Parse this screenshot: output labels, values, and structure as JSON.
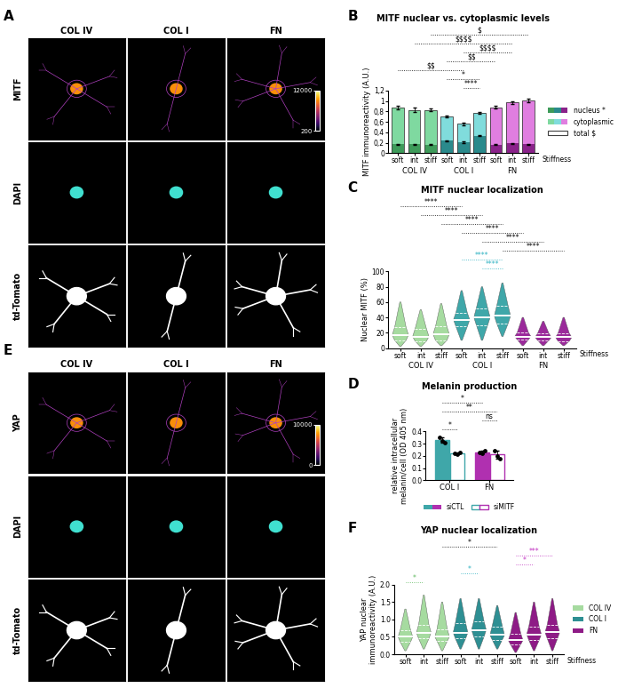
{
  "image_panels": [
    {
      "panel": "A",
      "columns": [
        "COL IV",
        "COL I",
        "FN"
      ],
      "rows": [
        "MITF",
        "DAPI",
        "td-Tomato"
      ],
      "colorbar": {
        "range": [
          200,
          12000
        ],
        "ticks": [
          200,
          12000
        ]
      }
    },
    {
      "panel": "E",
      "columns": [
        "COL IV",
        "COL I",
        "FN"
      ],
      "rows": [
        "YAP",
        "DAPI",
        "td-Tomato"
      ],
      "colorbar": {
        "range": [
          0,
          10000
        ],
        "ticks": [
          0,
          10000
        ]
      }
    }
  ],
  "chart_data": [
    {
      "panel": "B",
      "type": "bar",
      "title": "MITF nuclear vs. cytoplasmic levels",
      "categories": [
        "soft",
        "int",
        "stiff",
        "soft",
        "int",
        "stiff",
        "soft",
        "int",
        "stiff"
      ],
      "groups": [
        "COL IV",
        "COL I",
        "FN"
      ],
      "x_label": "Stiffness",
      "y_label": "MITF immunoreactivity (A.U.)",
      "ylim": [
        0,
        1.2
      ],
      "yticks": [
        0,
        {
          "value": 0.2,
          "label": "0,2"
        },
        {
          "value": 0.4,
          "label": "0,4"
        },
        {
          "value": 0.6,
          "label": "0,6"
        },
        {
          "value": 0.8,
          "label": "0,8"
        },
        1,
        {
          "value": 1.2,
          "label": "1,2"
        }
      ],
      "stacked": true,
      "legend": "right",
      "series": [
        {
          "name": "nucleus *",
          "type": "bar",
          "colors": [
            "#3e9b5a",
            "#3e9b5a",
            "#3e9b5a",
            "#2a8a8c",
            "#2a8a8c",
            "#2a8a8c",
            "#8a228a",
            "#8a228a",
            "#8a228a"
          ],
          "values": [
            0.17,
            0.17,
            0.16,
            0.24,
            0.21,
            0.33,
            0.16,
            0.19,
            0.17
          ],
          "errors": [
            0.01,
            0.01,
            0.01,
            0.01,
            0.01,
            0.01,
            0.01,
            0.01,
            0.01
          ]
        },
        {
          "name": "cytoplasmic",
          "type": "bar",
          "colors": [
            "#7fd9a0",
            "#7fd9a0",
            "#7fd9a0",
            "#80dcdc",
            "#80dcdc",
            "#80dcdc",
            "#e07ee0",
            "#e07ee0",
            "#e07ee0"
          ],
          "values": [
            0.7,
            0.66,
            0.67,
            0.46,
            0.35,
            0.44,
            0.72,
            0.78,
            0.84
          ]
        },
        {
          "name": "total $",
          "type": "outline",
          "color": "#404040",
          "values": [
            0.87,
            0.83,
            0.83,
            0.7,
            0.56,
            0.77,
            0.88,
            0.97,
            1.01
          ],
          "errors": [
            0.03,
            0.04,
            0.03,
            0.02,
            0.02,
            0.02,
            0.03,
            0.03,
            0.03
          ]
        }
      ],
      "annotations": [
        {
          "text": "****",
          "pair": [
            4,
            5
          ],
          "color": "#000000"
        },
        {
          "text": "*",
          "pair": [
            3,
            5
          ],
          "color": "#000000"
        },
        {
          "text": "$$",
          "pair": [
            0,
            4
          ],
          "color": "#000000"
        },
        {
          "text": "$$",
          "pair": [
            3,
            6
          ],
          "color": "#000000"
        },
        {
          "text": "$$$$",
          "pair": [
            4,
            7
          ],
          "color": "#000000"
        },
        {
          "text": "$$$$",
          "pair": [
            1,
            7
          ],
          "color": "#000000"
        },
        {
          "text": "$",
          "pair": [
            2,
            8
          ],
          "color": "#000000"
        }
      ]
    },
    {
      "panel": "C",
      "type": "violin",
      "title": "MITF nuclear localization",
      "categories": [
        "soft",
        "int",
        "stiff",
        "soft",
        "int",
        "stiff",
        "soft",
        "int",
        "stiff"
      ],
      "groups": [
        "COL IV",
        "COL I",
        "FN"
      ],
      "x_label": "Stiffness",
      "y_label": "Nuclear MITF (%)",
      "ylim": [
        0,
        100
      ],
      "yticks": [
        0,
        20,
        40,
        60,
        80,
        100
      ],
      "colors": [
        "#a6dba0",
        "#a6dba0",
        "#a6dba0",
        "#3fa7a9",
        "#3fa7a9",
        "#3fa7a9",
        "#9b2a9b",
        "#9b2a9b",
        "#9b2a9b"
      ],
      "medians": [
        17,
        15,
        18,
        37,
        40,
        42,
        15,
        14,
        14
      ],
      "quartiles": [
        [
          10,
          27
        ],
        [
          9,
          25
        ],
        [
          10,
          28
        ],
        [
          28,
          46
        ],
        [
          30,
          52
        ],
        [
          32,
          55
        ],
        [
          11,
          20
        ],
        [
          10,
          19
        ],
        [
          9,
          19
        ]
      ],
      "ranges": [
        [
          2,
          60
        ],
        [
          2,
          50
        ],
        [
          3,
          58
        ],
        [
          10,
          75
        ],
        [
          10,
          80
        ],
        [
          15,
          85
        ],
        [
          3,
          40
        ],
        [
          3,
          35
        ],
        [
          3,
          40
        ]
      ],
      "annotations": [
        {
          "text": "****",
          "pair": [
            4,
            5
          ],
          "color": "#2ab0c0"
        },
        {
          "text": "****",
          "pair": [
            3,
            5
          ],
          "color": "#2ab0c0"
        },
        {
          "text": "****",
          "pair": [
            5,
            8
          ],
          "color": "#000000"
        },
        {
          "text": "****",
          "pair": [
            4,
            7
          ],
          "color": "#000000"
        },
        {
          "text": "****",
          "pair": [
            3,
            6
          ],
          "color": "#000000"
        },
        {
          "text": "****",
          "pair": [
            2,
            5
          ],
          "color": "#000000"
        },
        {
          "text": "****",
          "pair": [
            1,
            4
          ],
          "color": "#000000"
        },
        {
          "text": "****",
          "pair": [
            0,
            3
          ],
          "color": "#000000"
        }
      ]
    },
    {
      "panel": "D",
      "type": "bar",
      "title": "Melanin production",
      "categories": [
        "COL I",
        "FN"
      ],
      "y_label": "relative intracellular\nmelanin/cell (OD 405 nm)",
      "ylim": [
        0,
        0.4
      ],
      "yticks": [
        {
          "value": 0,
          "label": "0.0"
        },
        0.1,
        0.2,
        0.3,
        0.4
      ],
      "legend": "bottom",
      "series": [
        {
          "name": "siCTL",
          "type": "bar",
          "colors": [
            "#3fa7a9",
            "#b030b0"
          ],
          "values": [
            0.33,
            0.23
          ],
          "errors": [
            0.02,
            0.01
          ],
          "points": [
            [
              0.35,
              0.32,
              0.31
            ],
            [
              0.23,
              0.22,
              0.24
            ]
          ]
        },
        {
          "name": "siMITF",
          "type": "open_bar",
          "colors": [
            "#3fa7a9",
            "#b030b0"
          ],
          "values": [
            0.22,
            0.21
          ],
          "errors": [
            0.01,
            0.03
          ],
          "points": [
            [
              0.22,
              0.21,
              0.23
            ],
            [
              0.24,
              0.2,
              0.18
            ]
          ]
        }
      ],
      "annotations": [
        {
          "text": "*",
          "pair": [
            0,
            1
          ],
          "color": "#000000"
        },
        {
          "text": "ns",
          "pair": [
            2,
            3
          ],
          "color": "#000000"
        },
        {
          "text": "**",
          "pair": [
            0,
            3
          ],
          "color": "#000000"
        },
        {
          "text": "*",
          "pair": [
            0,
            2
          ],
          "color": "#000000"
        }
      ]
    },
    {
      "panel": "F",
      "type": "violin",
      "title": "YAP nuclear localization",
      "categories": [
        "soft",
        "int",
        "stiff",
        "soft",
        "int",
        "stiff",
        "soft",
        "int",
        "stiff"
      ],
      "groups": [
        "COL IV",
        "COL I",
        "FN"
      ],
      "x_label": "Stiffness",
      "y_label": "YAP nuclear\nimmunoreactivity (A.U.)",
      "ylim": [
        0,
        2.0
      ],
      "yticks": [
        {
          "value": 0,
          "label": "0.0"
        },
        0.5,
        {
          "value": 1,
          "label": "1.0"
        },
        1.5,
        {
          "value": 2,
          "label": "2.0"
        }
      ],
      "legend": "right",
      "colors": [
        "#a6dba0",
        "#a6dba0",
        "#a6dba0",
        "#2e8f93",
        "#2e8f93",
        "#2e8f93",
        "#8e1b86",
        "#8e1b86",
        "#8e1b86"
      ],
      "medians": [
        0.5,
        0.62,
        0.5,
        0.62,
        0.7,
        0.55,
        0.4,
        0.57,
        0.63
      ],
      "quartiles": [
        [
          0.35,
          0.7
        ],
        [
          0.45,
          0.85
        ],
        [
          0.38,
          0.72
        ],
        [
          0.45,
          0.9
        ],
        [
          0.5,
          0.95
        ],
        [
          0.42,
          0.8
        ],
        [
          0.28,
          0.6
        ],
        [
          0.4,
          0.8
        ],
        [
          0.45,
          0.85
        ]
      ],
      "ranges": [
        [
          0.1,
          1.3
        ],
        [
          0.15,
          1.7
        ],
        [
          0.1,
          1.5
        ],
        [
          0.15,
          1.6
        ],
        [
          0.15,
          1.6
        ],
        [
          0.15,
          1.4
        ],
        [
          0.05,
          1.2
        ],
        [
          0.1,
          1.5
        ],
        [
          0.1,
          1.6
        ]
      ],
      "annotations": [
        {
          "text": "*",
          "pair": [
            0,
            1
          ],
          "color": "#5cb85c"
        },
        {
          "text": "*",
          "pair": [
            3,
            4
          ],
          "color": "#2ab0c0"
        },
        {
          "text": "*",
          "pair": [
            6,
            7
          ],
          "color": "#c030c0"
        },
        {
          "text": "***",
          "pair": [
            6,
            8
          ],
          "color": "#c030c0"
        },
        {
          "text": "*",
          "pair": [
            2,
            5
          ],
          "color": "#000000"
        }
      ]
    }
  ]
}
